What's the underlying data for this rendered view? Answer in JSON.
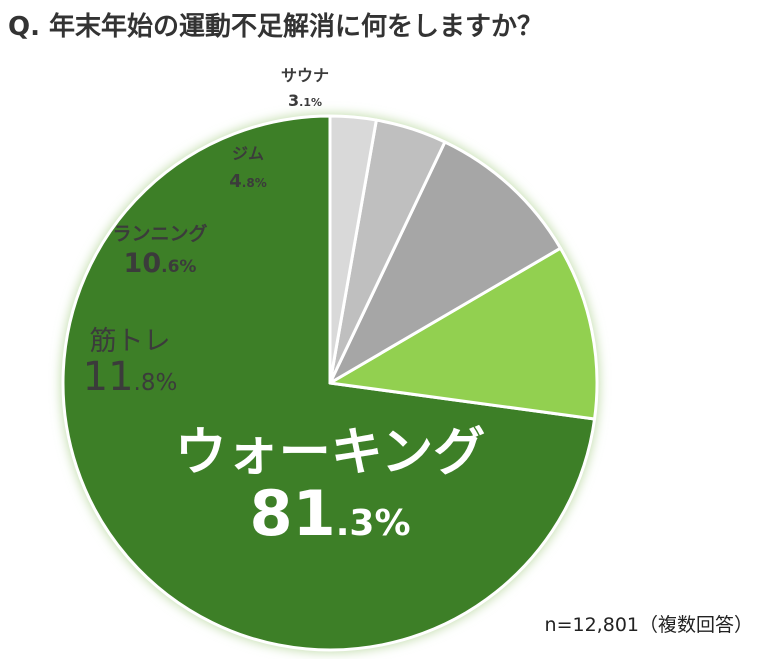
{
  "title": "Q. 年末年始の運動不足解消に何をしますか？",
  "note": "n=12,801（複数回答）",
  "chart_data": {
    "type": "pie",
    "title": "Q. 年末年始の運動不足解消に何をしますか？",
    "slices": [
      {
        "label": "ウォーキング",
        "value": 81.3,
        "int": "81",
        "dec": ".3%",
        "color": "#3d7f27"
      },
      {
        "label": "筋トレ",
        "value": 11.8,
        "int": "11",
        "dec": ".8%",
        "color": "#92d050"
      },
      {
        "label": "ランニング",
        "value": 10.6,
        "int": "10",
        "dec": ".6%",
        "color": "#a6a6a6"
      },
      {
        "label": "ジム",
        "value": 4.8,
        "int": "4",
        "dec": ".8%",
        "color": "#bfbfbf"
      },
      {
        "label": "サウナ",
        "value": 3.1,
        "int": "3",
        "dec": ".1%",
        "color": "#d9d9d9"
      }
    ],
    "note": "n=12,801（複数回答）"
  }
}
